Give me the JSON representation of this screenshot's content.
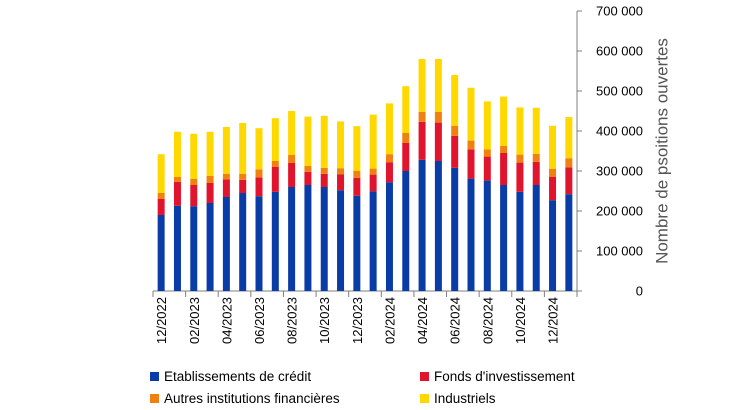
{
  "chart_data": {
    "type": "bar",
    "stacked": true,
    "ylabel": "Nombre de psoitions ouvertes",
    "ylim": [
      0,
      700000
    ],
    "yticks": [
      0,
      100000,
      200000,
      300000,
      400000,
      500000,
      600000,
      700000
    ],
    "ytick_labels": [
      "0",
      "100 000",
      "200 000",
      "300 000",
      "400 000",
      "500 000",
      "600 000",
      "700 000"
    ],
    "y_axis_side": "right",
    "grid": false,
    "legend_position": "bottom",
    "tick_labels": [
      "12/2022",
      "02/2023",
      "04/2023",
      "06/2023",
      "08/2023",
      "10/2023",
      "12/2023",
      "02/2024",
      "04/2024",
      "06/2024",
      "08/2024",
      "10/2024",
      "12/2024"
    ],
    "series": [
      {
        "name": "Etablissements de crédit",
        "color": "#0a3ca8",
        "values": [
          190000,
          213000,
          212000,
          220000,
          235000,
          245000,
          237000,
          248000,
          260000,
          265000,
          260000,
          252000,
          238000,
          249000,
          272000,
          300000,
          328000,
          325000,
          308000,
          281000,
          276000,
          265000,
          248000,
          265000,
          227000,
          242000
        ]
      },
      {
        "name": "Fonds d'investissement",
        "color": "#e0142d",
        "values": [
          40000,
          60000,
          53000,
          50000,
          44000,
          33000,
          47000,
          62000,
          60000,
          33000,
          33000,
          40000,
          45000,
          42000,
          50000,
          70000,
          95000,
          96000,
          80000,
          73000,
          60000,
          80000,
          73000,
          58000,
          58000,
          67000
        ]
      },
      {
        "name": "Autres institutions financières",
        "color": "#f08010",
        "values": [
          15000,
          12000,
          15000,
          18000,
          14000,
          15000,
          20000,
          15000,
          20000,
          15000,
          15000,
          15000,
          17000,
          15000,
          20000,
          25000,
          25000,
          27000,
          25000,
          22000,
          18000,
          18000,
          20000,
          20000,
          20000,
          23000
        ]
      },
      {
        "name": "Industriels",
        "color": "#ffd800",
        "values": [
          97000,
          113000,
          113000,
          110000,
          117000,
          127000,
          103000,
          107000,
          110000,
          123000,
          130000,
          117000,
          112000,
          135000,
          127000,
          117000,
          132000,
          132000,
          127000,
          132000,
          120000,
          123000,
          118000,
          115000,
          108000,
          103000
        ]
      }
    ]
  }
}
